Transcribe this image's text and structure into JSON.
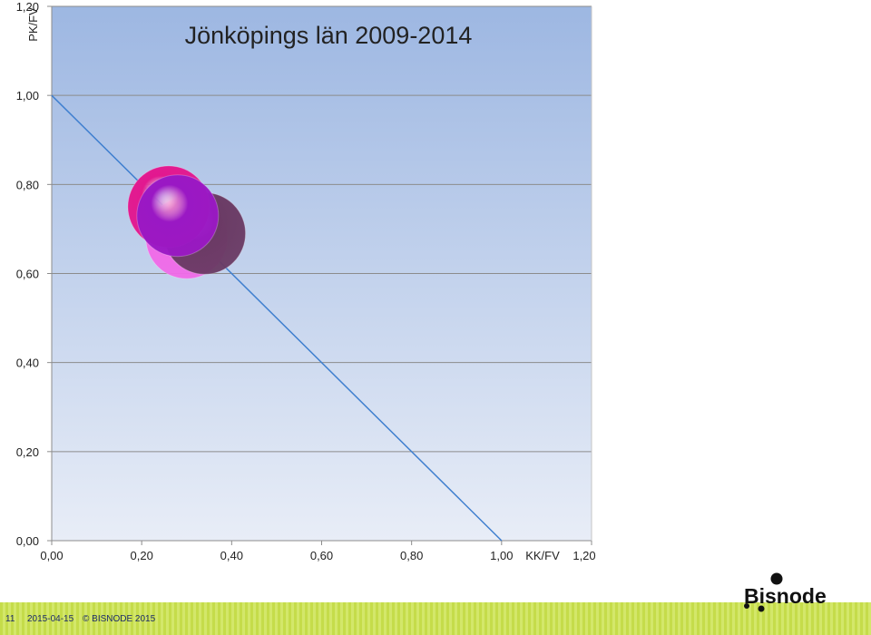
{
  "chart_data": {
    "type": "scatter",
    "title": "Jönköpings län 2009-2014",
    "xlabel": "KK/FV",
    "ylabel": "PK/FV",
    "xlim": [
      0,
      1.2
    ],
    "ylim": [
      0,
      1.2
    ],
    "xticks": [
      "0,00",
      "0,20",
      "0,40",
      "0,60",
      "0,80",
      "1,00",
      "1,20"
    ],
    "yticks": [
      "0,00",
      "0,20",
      "0,40",
      "0,60",
      "0,80",
      "1,00",
      "1,20"
    ],
    "grid": "horizontal",
    "reference_line": {
      "from": [
        0,
        1.0
      ],
      "to": [
        1.0,
        0
      ]
    },
    "bubbles": [
      {
        "x": 0.3,
        "y": 0.68,
        "color": "#f06be8"
      },
      {
        "x": 0.34,
        "y": 0.69,
        "color": "#6a3a64"
      },
      {
        "x": 0.26,
        "y": 0.75,
        "color": "#e2188f"
      },
      {
        "x": 0.28,
        "y": 0.73,
        "color": "#9a18c4"
      }
    ],
    "colors": {
      "plot_top": "#9db7e2",
      "plot_bottom": "#e8edf7",
      "line": "#3f7fcf"
    }
  },
  "footer": {
    "page": "11",
    "date": "2015-04-15",
    "copyright": "© BISNODE 2015"
  },
  "logo": {
    "text": "Bisnode"
  }
}
